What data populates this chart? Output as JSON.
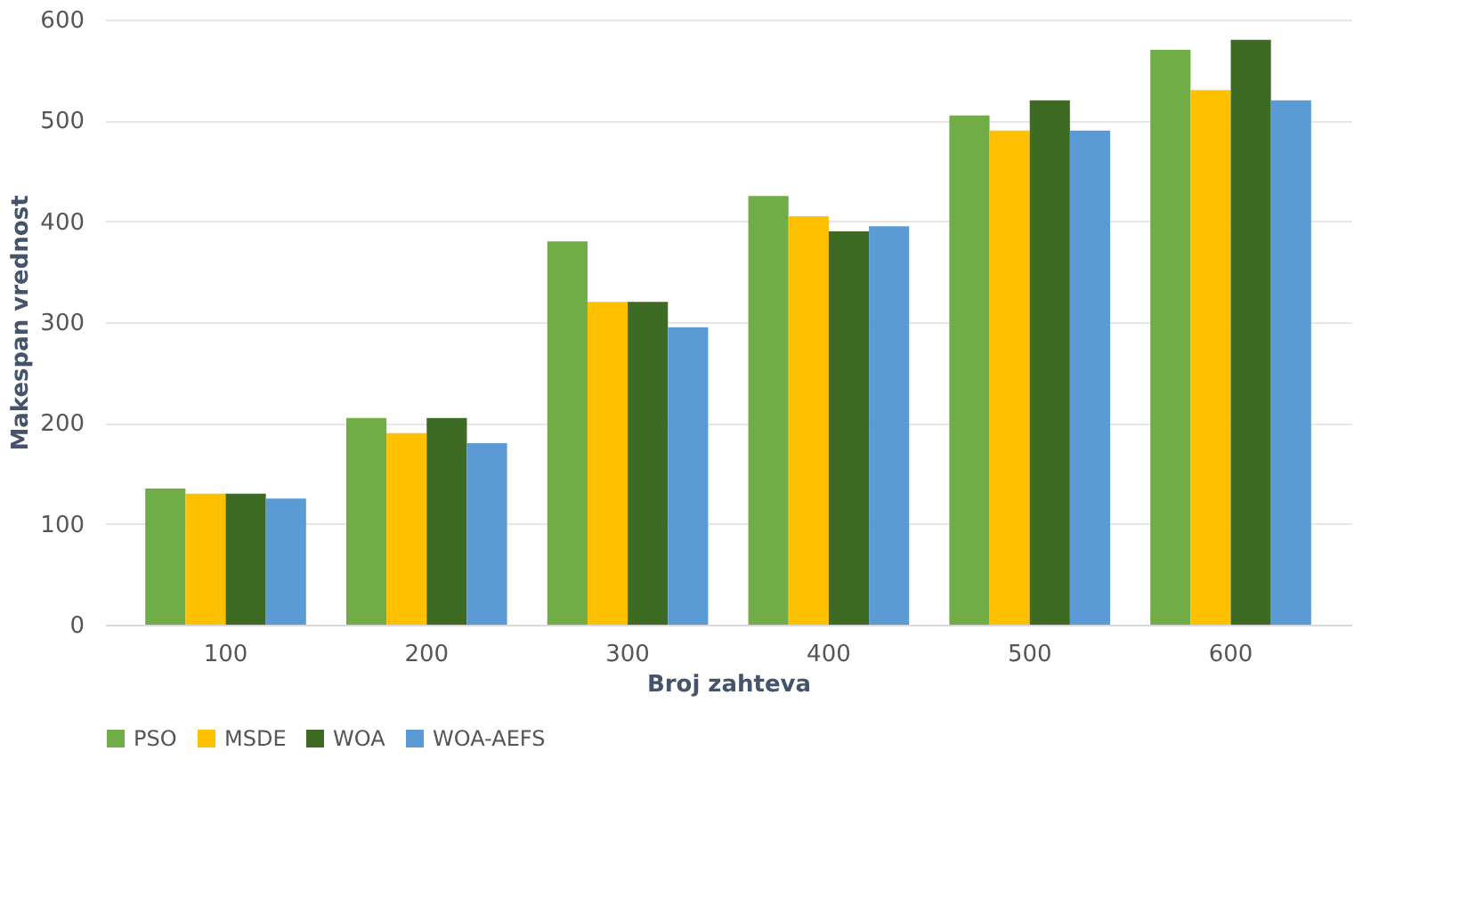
{
  "chart_data": {
    "type": "bar",
    "xlabel": "Broj zahteva",
    "ylabel": "Makespan vrednost",
    "categories": [
      "100",
      "200",
      "300",
      "400",
      "500",
      "600"
    ],
    "series": [
      {
        "name": "PSO",
        "color": "#70ad47",
        "values": [
          135,
          205,
          380,
          425,
          505,
          570
        ]
      },
      {
        "name": "MSDE",
        "color": "#ffc000",
        "values": [
          130,
          190,
          320,
          405,
          490,
          530
        ]
      },
      {
        "name": "WOA",
        "color": "#3e6b23",
        "values": [
          130,
          205,
          320,
          390,
          520,
          580
        ]
      },
      {
        "name": "WOA-AEFS",
        "color": "#5b9bd5",
        "values": [
          125,
          180,
          295,
          395,
          490,
          520
        ]
      }
    ],
    "ylim": [
      0,
      600
    ],
    "yticks": [
      0,
      100,
      200,
      300,
      400,
      500,
      600
    ],
    "grid": "y",
    "legend": "bottom"
  }
}
